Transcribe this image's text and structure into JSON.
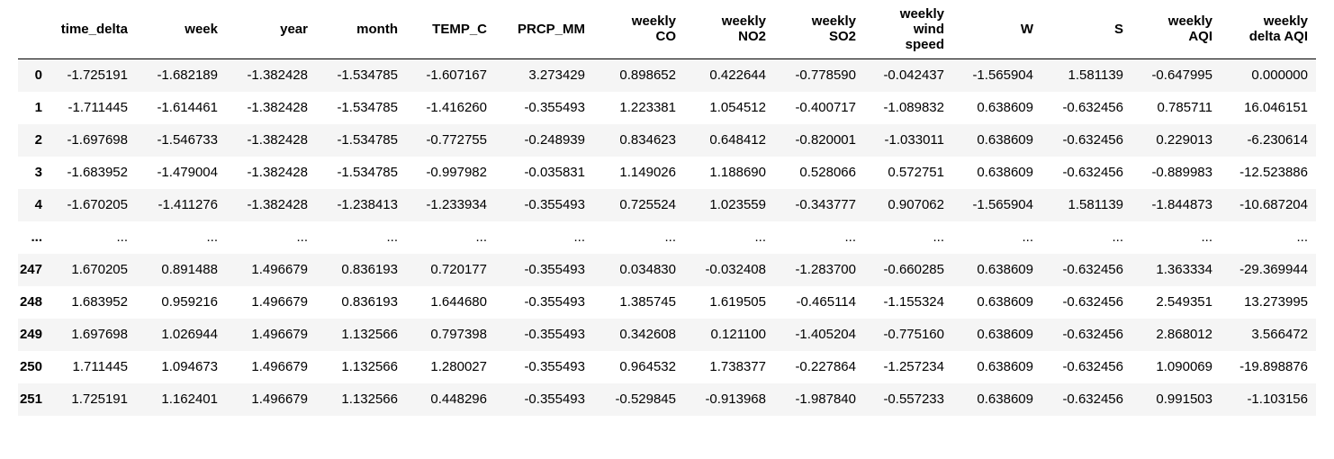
{
  "table": {
    "columns": [
      [
        "time_delta"
      ],
      [
        "week"
      ],
      [
        "year"
      ],
      [
        "month"
      ],
      [
        "TEMP_C"
      ],
      [
        "PRCP_MM"
      ],
      [
        "weekly",
        "CO"
      ],
      [
        "weekly",
        "NO2"
      ],
      [
        "weekly",
        "SO2"
      ],
      [
        "weekly",
        "wind",
        "speed"
      ],
      [
        "W"
      ],
      [
        "S"
      ],
      [
        "weekly",
        "AQI"
      ],
      [
        "weekly",
        "delta AQI"
      ]
    ],
    "rows": [
      {
        "index": "0",
        "cells": [
          "-1.725191",
          "-1.682189",
          "-1.382428",
          "-1.534785",
          "-1.607167",
          "3.273429",
          "0.898652",
          "0.422644",
          "-0.778590",
          "-0.042437",
          "-1.565904",
          "1.581139",
          "-0.647995",
          "0.000000"
        ]
      },
      {
        "index": "1",
        "cells": [
          "-1.711445",
          "-1.614461",
          "-1.382428",
          "-1.534785",
          "-1.416260",
          "-0.355493",
          "1.223381",
          "1.054512",
          "-0.400717",
          "-1.089832",
          "0.638609",
          "-0.632456",
          "0.785711",
          "16.046151"
        ]
      },
      {
        "index": "2",
        "cells": [
          "-1.697698",
          "-1.546733",
          "-1.382428",
          "-1.534785",
          "-0.772755",
          "-0.248939",
          "0.834623",
          "0.648412",
          "-0.820001",
          "-1.033011",
          "0.638609",
          "-0.632456",
          "0.229013",
          "-6.230614"
        ]
      },
      {
        "index": "3",
        "cells": [
          "-1.683952",
          "-1.479004",
          "-1.382428",
          "-1.534785",
          "-0.997982",
          "-0.035831",
          "1.149026",
          "1.188690",
          "0.528066",
          "0.572751",
          "0.638609",
          "-0.632456",
          "-0.889983",
          "-12.523886"
        ]
      },
      {
        "index": "4",
        "cells": [
          "-1.670205",
          "-1.411276",
          "-1.382428",
          "-1.238413",
          "-1.233934",
          "-0.355493",
          "0.725524",
          "1.023559",
          "-0.343777",
          "0.907062",
          "-1.565904",
          "1.581139",
          "-1.844873",
          "-10.687204"
        ]
      },
      {
        "index": "...",
        "cells": [
          "...",
          "...",
          "...",
          "...",
          "...",
          "...",
          "...",
          "...",
          "...",
          "...",
          "...",
          "...",
          "...",
          "..."
        ]
      },
      {
        "index": "247",
        "cells": [
          "1.670205",
          "0.891488",
          "1.496679",
          "0.836193",
          "0.720177",
          "-0.355493",
          "0.034830",
          "-0.032408",
          "-1.283700",
          "-0.660285",
          "0.638609",
          "-0.632456",
          "1.363334",
          "-29.369944"
        ]
      },
      {
        "index": "248",
        "cells": [
          "1.683952",
          "0.959216",
          "1.496679",
          "0.836193",
          "1.644680",
          "-0.355493",
          "1.385745",
          "1.619505",
          "-0.465114",
          "-1.155324",
          "0.638609",
          "-0.632456",
          "2.549351",
          "13.273995"
        ]
      },
      {
        "index": "249",
        "cells": [
          "1.697698",
          "1.026944",
          "1.496679",
          "1.132566",
          "0.797398",
          "-0.355493",
          "0.342608",
          "0.121100",
          "-1.405204",
          "-0.775160",
          "0.638609",
          "-0.632456",
          "2.868012",
          "3.566472"
        ]
      },
      {
        "index": "250",
        "cells": [
          "1.711445",
          "1.094673",
          "1.496679",
          "1.132566",
          "1.280027",
          "-0.355493",
          "0.964532",
          "1.738377",
          "-0.227864",
          "-1.257234",
          "0.638609",
          "-0.632456",
          "1.090069",
          "-19.898876"
        ]
      },
      {
        "index": "251",
        "cells": [
          "1.725191",
          "1.162401",
          "1.496679",
          "1.132566",
          "0.448296",
          "-0.355493",
          "-0.529845",
          "-0.913968",
          "-1.987840",
          "-0.557233",
          "0.638609",
          "-0.632456",
          "0.991503",
          "-1.103156"
        ]
      }
    ]
  },
  "colors": {
    "stripe": "#f5f5f5",
    "background": "#ffffff",
    "text": "#000000"
  }
}
